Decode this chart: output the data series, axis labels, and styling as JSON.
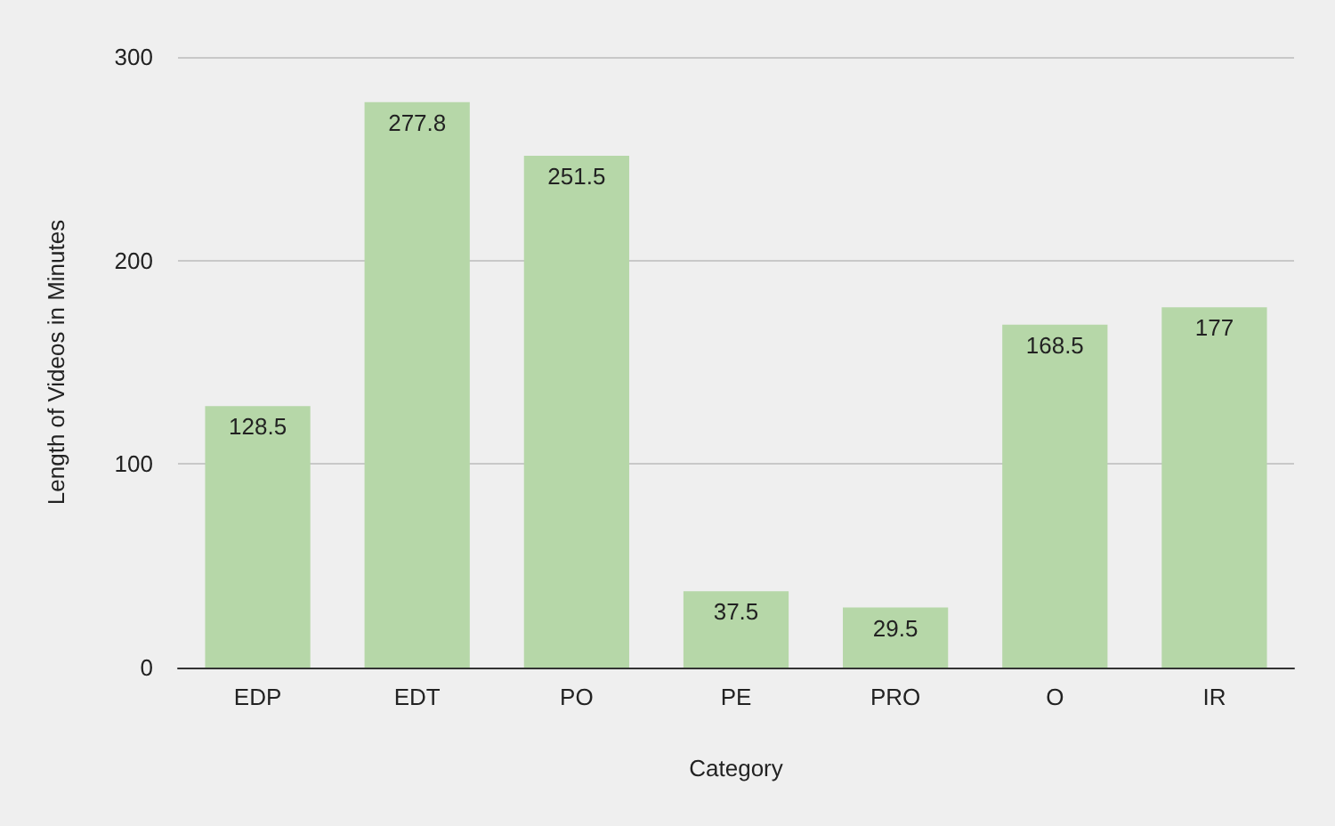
{
  "chart_data": {
    "type": "bar",
    "xlabel": "Category",
    "ylabel": "Length of Videos in Minutes",
    "categories": [
      "EDP",
      "EDT",
      "PO",
      "PE",
      "PRO",
      "O",
      "IR"
    ],
    "values": [
      128.5,
      277.8,
      251.5,
      37.5,
      29.5,
      168.5,
      177
    ],
    "color": "#b6d7a8",
    "ylim": [
      0,
      300
    ],
    "yticks": [
      0,
      100,
      200,
      300
    ],
    "grid": "y",
    "data_labels": true
  }
}
